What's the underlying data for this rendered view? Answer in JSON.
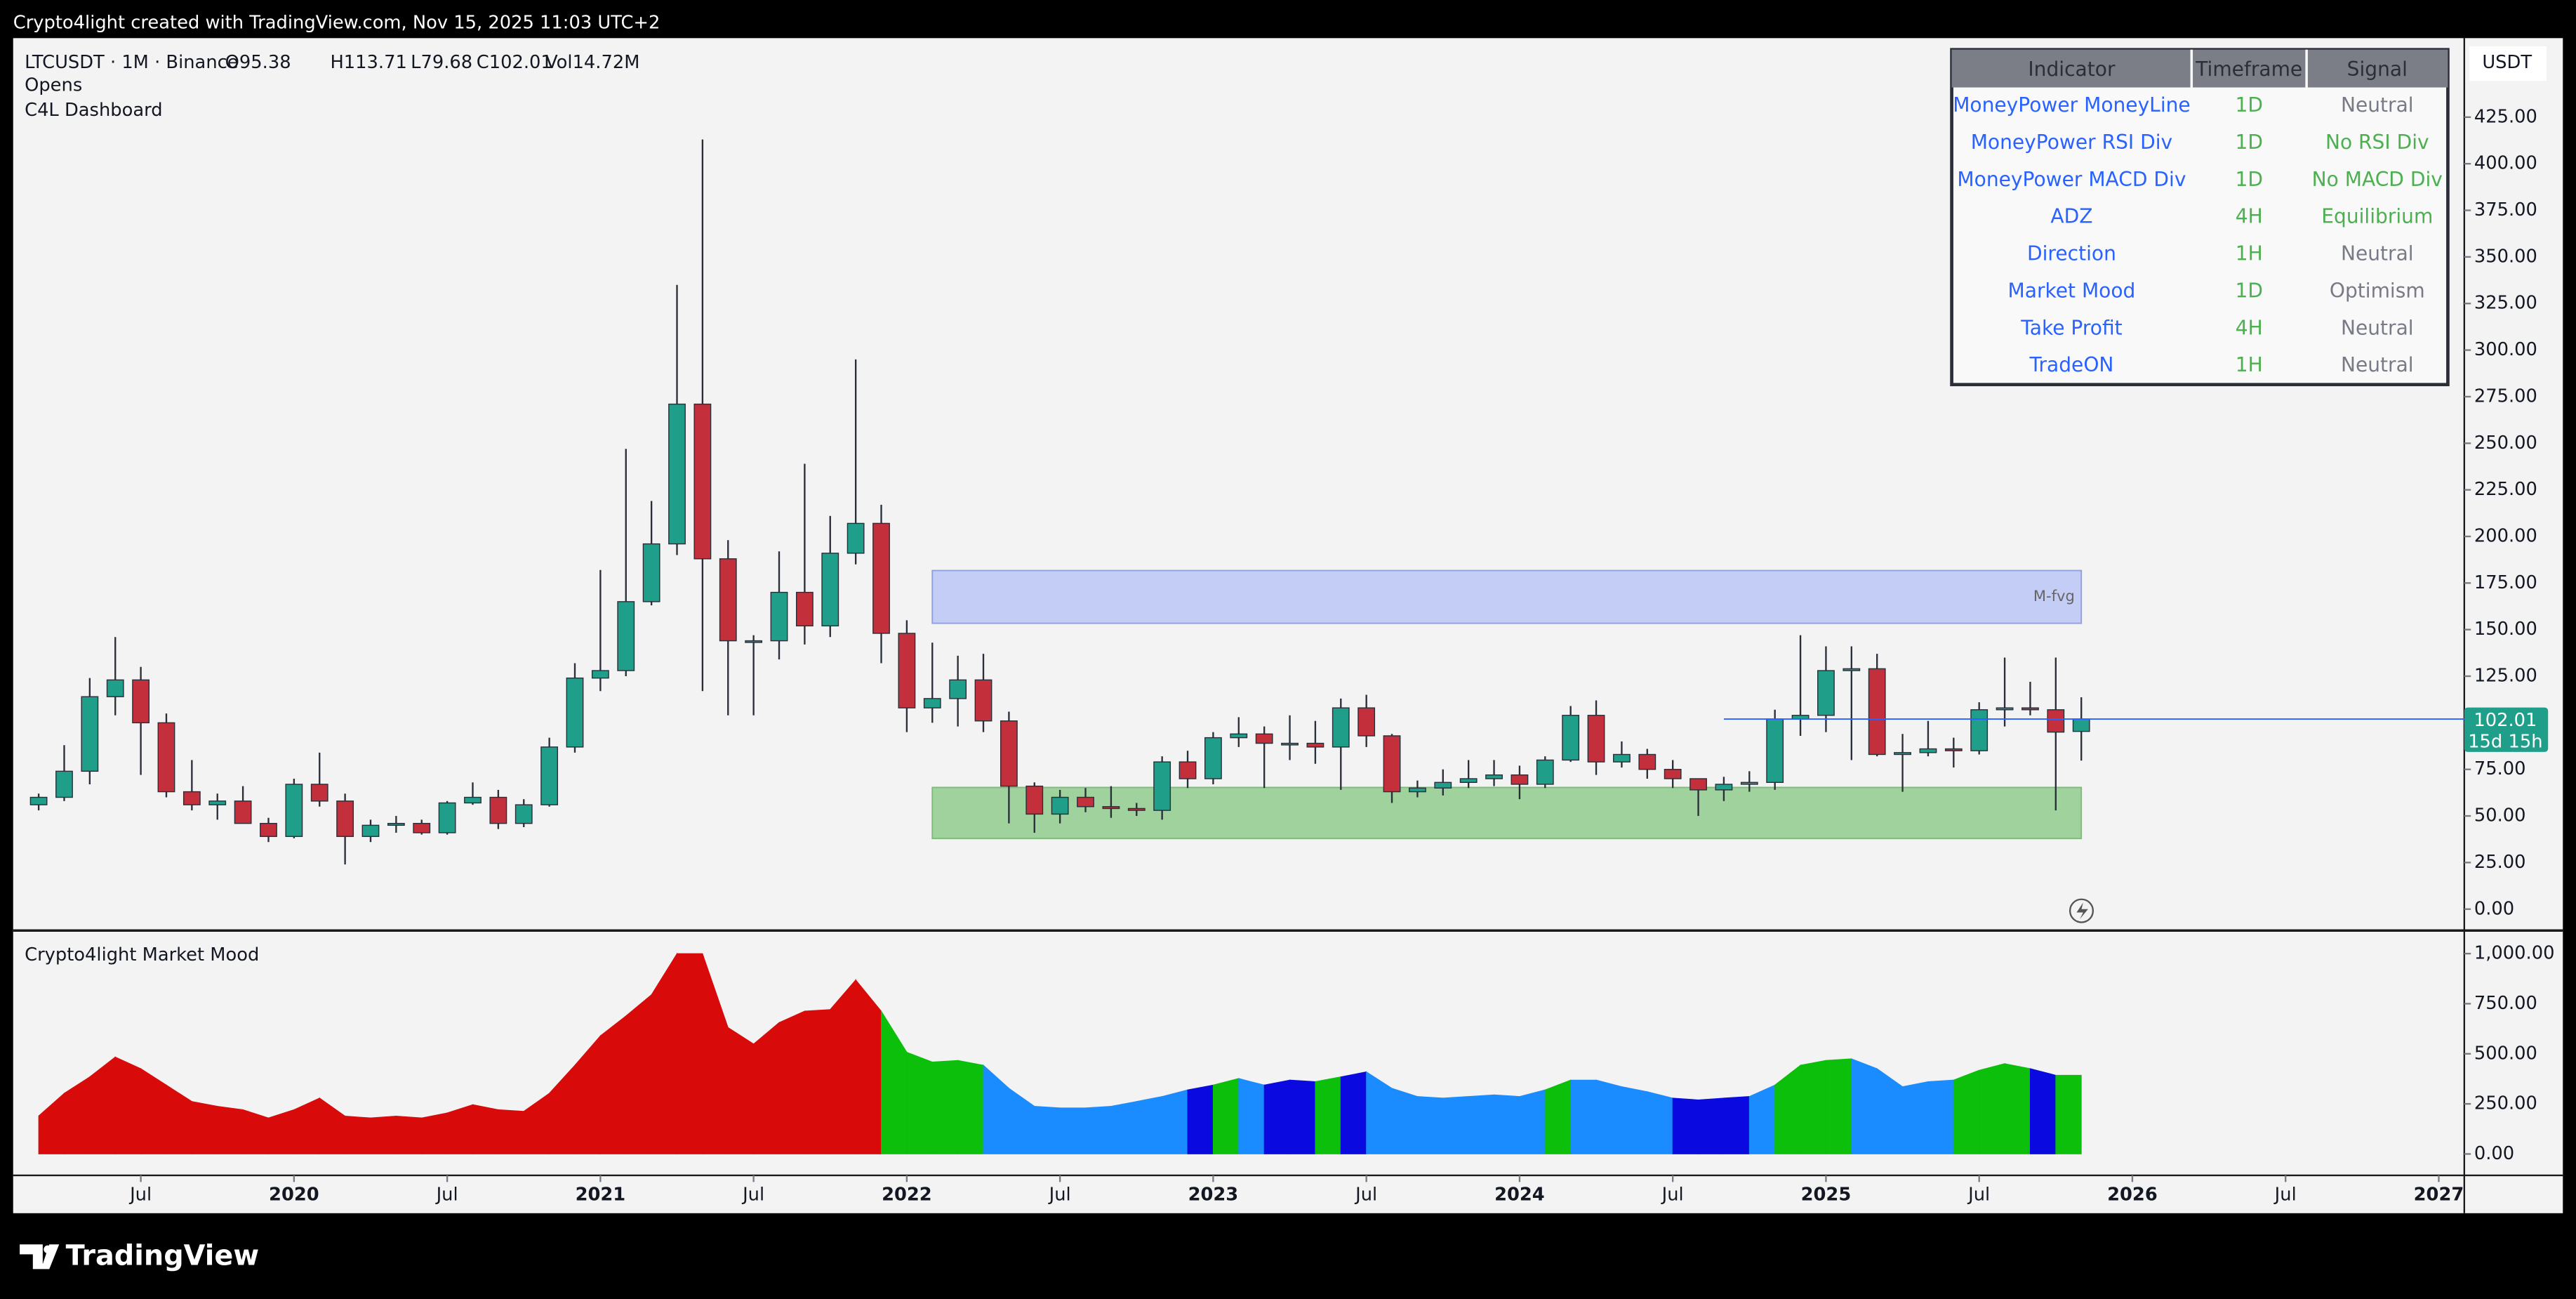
{
  "header": {
    "title": "Crypto4light created with TradingView.com, Nov 15, 2025 11:03 UTC+2",
    "symbol": "LTCUSDT · 1M · Binance",
    "ohlcv": [
      "O95.38",
      "H113.71",
      "L79.68",
      "C102.01",
      "Vol14.72M"
    ],
    "indicators": [
      "Opens",
      "C4L Dashboard"
    ]
  },
  "dashboard": {
    "columns": [
      "Indicator",
      "Timeframe",
      "Signal"
    ],
    "rows": [
      [
        "MoneyPower MoneyLine",
        "1D",
        "Neutral"
      ],
      [
        "MoneyPower RSI Div",
        "1D",
        "No RSI Div"
      ],
      [
        "MoneyPower MACD Div",
        "1D",
        "No MACD Div"
      ],
      [
        "ADZ",
        "4H",
        "Equilibrium"
      ],
      [
        "Direction",
        "1H",
        "Neutral"
      ],
      [
        "Market Mood",
        "1D",
        "Optimism"
      ],
      [
        "Take Profit",
        "4H",
        "Neutral"
      ],
      [
        "TradeON",
        "1H",
        "Neutral"
      ]
    ],
    "signal_colors": [
      "#787b86",
      "#4caf50",
      "#4caf50",
      "#4caf50",
      "#787b86",
      "#787b86",
      "#787b86",
      "#787b86"
    ]
  },
  "chart_data": [
    {
      "type": "candlestick",
      "unit": "USDT",
      "x": [
        "2019-03",
        "2019-04",
        "2019-05",
        "2019-06",
        "2019-07",
        "2019-08",
        "2019-09",
        "2019-10",
        "2019-11",
        "2019-12",
        "2020-01",
        "2020-02",
        "2020-03",
        "2020-04",
        "2020-05",
        "2020-06",
        "2020-07",
        "2020-08",
        "2020-09",
        "2020-10",
        "2020-11",
        "2020-12",
        "2021-01",
        "2021-02",
        "2021-03",
        "2021-04",
        "2021-05",
        "2021-06",
        "2021-07",
        "2021-08",
        "2021-09",
        "2021-10",
        "2021-11",
        "2021-12",
        "2022-01",
        "2022-02",
        "2022-03",
        "2022-04",
        "2022-05",
        "2022-06",
        "2022-07",
        "2022-08",
        "2022-09",
        "2022-10",
        "2022-11",
        "2022-12",
        "2023-01",
        "2023-02",
        "2023-03",
        "2023-04",
        "2023-05",
        "2023-06",
        "2023-07",
        "2023-08",
        "2023-09",
        "2023-10",
        "2023-11",
        "2023-12",
        "2024-01",
        "2024-02",
        "2024-03",
        "2024-04",
        "2024-05",
        "2024-06",
        "2024-07",
        "2024-08",
        "2024-09",
        "2024-10",
        "2024-11",
        "2024-12",
        "2025-01",
        "2025-02",
        "2025-03",
        "2025-04",
        "2025-05",
        "2025-06",
        "2025-07",
        "2025-08",
        "2025-09",
        "2025-10",
        "2025-11"
      ],
      "open": [
        56,
        60,
        74,
        114,
        123,
        100,
        63,
        56,
        58,
        46,
        39,
        67,
        58,
        39,
        45,
        46,
        41,
        57,
        60,
        46,
        56,
        87,
        124,
        128,
        165,
        196,
        271,
        188,
        144,
        144,
        170,
        152,
        191,
        207,
        148,
        108,
        113,
        123,
        101,
        66,
        51,
        60,
        55,
        54,
        53,
        79,
        70,
        92,
        94,
        89,
        89,
        87,
        108,
        93,
        63,
        65,
        68,
        70,
        72,
        67,
        80,
        104,
        79,
        83,
        75,
        70,
        64,
        67,
        68,
        102,
        104,
        128,
        129,
        83,
        84,
        86,
        85,
        107,
        108,
        107,
        95.38
      ],
      "high": [
        62,
        88,
        124,
        146,
        130,
        105,
        80,
        62,
        66,
        49,
        70,
        84,
        62,
        48,
        50,
        48,
        58,
        68,
        64,
        59,
        92,
        132,
        182,
        247,
        219,
        335,
        413,
        198,
        147,
        192,
        239,
        211,
        295,
        217,
        155,
        143,
        136,
        137,
        106,
        68,
        64,
        65,
        66,
        57,
        82,
        85,
        95,
        103,
        98,
        104,
        101,
        113,
        115,
        94,
        69,
        75,
        80,
        80,
        77,
        82,
        109,
        112,
        90,
        86,
        80,
        70,
        71,
        74,
        107,
        147,
        141,
        141,
        137,
        94,
        101,
        92,
        111,
        135,
        122,
        135,
        113.71
      ],
      "low": [
        53,
        58,
        67,
        104,
        72,
        60,
        53,
        48,
        46,
        36,
        38,
        55,
        24,
        36,
        41,
        40,
        40,
        56,
        43,
        44,
        55,
        84,
        117,
        125,
        163,
        190,
        117,
        104,
        104,
        134,
        142,
        146,
        185,
        132,
        95,
        100,
        98,
        95,
        46,
        41,
        46,
        52,
        49,
        50,
        48,
        65,
        67,
        87,
        65,
        80,
        78,
        64,
        87,
        57,
        60,
        61,
        65,
        66,
        59,
        65,
        79,
        72,
        76,
        70,
        65,
        50,
        58,
        63,
        64,
        93,
        95,
        80,
        82,
        63,
        82,
        76,
        83,
        98,
        104,
        53,
        79.68
      ],
      "close": [
        60,
        74,
        114,
        123,
        100,
        63,
        56,
        58,
        46,
        39,
        67,
        58,
        39,
        45,
        46,
        41,
        57,
        60,
        46,
        56,
        87,
        124,
        128,
        165,
        196,
        271,
        188,
        144,
        144,
        170,
        152,
        191,
        207,
        148,
        108,
        113,
        123,
        101,
        66,
        51,
        60,
        55,
        54,
        53,
        79,
        70,
        92,
        94,
        89,
        89,
        87,
        108,
        93,
        63,
        65,
        68,
        70,
        72,
        67,
        80,
        104,
        79,
        83,
        75,
        70,
        64,
        67,
        68,
        102,
        104,
        128,
        129,
        83,
        84,
        86,
        85,
        107,
        108,
        107,
        95,
        102.01
      ],
      "up_color": "#1f9e89",
      "down_color": "#c3303c",
      "last_price_color": "#2962ff",
      "countdown": "15d 15h",
      "xlim": [
        "2019-02",
        "2027-02"
      ],
      "xticks": [
        {
          "value": "2019-07",
          "label": "Jul"
        },
        {
          "value": "2020-01",
          "label": "2020"
        },
        {
          "value": "2020-07",
          "label": "Jul"
        },
        {
          "value": "2021-01",
          "label": "2021"
        },
        {
          "value": "2021-07",
          "label": "Jul"
        },
        {
          "value": "2022-01",
          "label": "2022"
        },
        {
          "value": "2022-07",
          "label": "Jul"
        },
        {
          "value": "2023-01",
          "label": "2023"
        },
        {
          "value": "2023-07",
          "label": "Jul"
        },
        {
          "value": "2024-01",
          "label": "2024"
        },
        {
          "value": "2024-07",
          "label": "Jul"
        },
        {
          "value": "2025-01",
          "label": "2025"
        },
        {
          "value": "2025-07",
          "label": "Jul"
        },
        {
          "value": "2026-01",
          "label": "2026"
        },
        {
          "value": "2026-07",
          "label": "Jul"
        },
        {
          "value": "2027-01",
          "label": "2027"
        }
      ],
      "ylim": [
        -10.6,
        467.4
      ],
      "yticks": [
        {
          "value": 0,
          "label": "0.00"
        },
        {
          "value": 25,
          "label": "25.00"
        },
        {
          "value": 50,
          "label": "50.00"
        },
        {
          "value": 75,
          "label": "75.00"
        },
        {
          "value": 100,
          "label": "100.00"
        },
        {
          "value": 125,
          "label": "125.00"
        },
        {
          "value": 150,
          "label": "150.00"
        },
        {
          "value": 175,
          "label": "175.00"
        },
        {
          "value": 200,
          "label": "200.00"
        },
        {
          "value": 225,
          "label": "225.00"
        },
        {
          "value": 250,
          "label": "250.00"
        },
        {
          "value": 275,
          "label": "275.00"
        },
        {
          "value": 300,
          "label": "300.00"
        },
        {
          "value": 325,
          "label": "325.00"
        },
        {
          "value": 350,
          "label": "350.00"
        },
        {
          "value": 375,
          "label": "375.00"
        },
        {
          "value": 400,
          "label": "400.00"
        },
        {
          "value": 425,
          "label": "425.00"
        }
      ],
      "zones": [
        {
          "label": "M-fvg",
          "x": [
            "2022-02",
            "2025-11"
          ],
          "y": [
            153.4,
            181.7
          ],
          "color": "#c3cdf6",
          "border": "#8e9fe2"
        },
        {
          "x": [
            "2022-02",
            "2025-11"
          ],
          "y": [
            37.9,
            65.3
          ],
          "color": "#9fd29c",
          "border": "#7dbb79"
        }
      ]
    },
    {
      "type": "area",
      "title": "Crypto4light Market Mood",
      "x": [
        "2019-03",
        "2019-04",
        "2019-05",
        "2019-06",
        "2019-07",
        "2019-08",
        "2019-09",
        "2019-10",
        "2019-11",
        "2019-12",
        "2020-01",
        "2020-02",
        "2020-03",
        "2020-04",
        "2020-05",
        "2020-06",
        "2020-07",
        "2020-08",
        "2020-09",
        "2020-10",
        "2020-11",
        "2020-12",
        "2021-01",
        "2021-02",
        "2021-03",
        "2021-04",
        "2021-05",
        "2021-06",
        "2021-07",
        "2021-08",
        "2021-09",
        "2021-10",
        "2021-11",
        "2021-12",
        "2022-01",
        "2022-02",
        "2022-03",
        "2022-04",
        "2022-05",
        "2022-06",
        "2022-07",
        "2022-08",
        "2022-09",
        "2022-10",
        "2022-11",
        "2022-12",
        "2023-01",
        "2023-02",
        "2023-03",
        "2023-04",
        "2023-05",
        "2023-06",
        "2023-07",
        "2023-08",
        "2023-09",
        "2023-10",
        "2023-11",
        "2023-12",
        "2024-01",
        "2024-02",
        "2024-03",
        "2024-04",
        "2024-05",
        "2024-06",
        "2024-07",
        "2024-08",
        "2024-09",
        "2024-10",
        "2024-11",
        "2024-12",
        "2025-01",
        "2025-02",
        "2025-03",
        "2025-04",
        "2025-05",
        "2025-06",
        "2025-07",
        "2025-08",
        "2025-09",
        "2025-10",
        "2025-11"
      ],
      "values": [
        190,
        303,
        385,
        484,
        426,
        344,
        262,
        238,
        221,
        180,
        221,
        279,
        189,
        180,
        189,
        180,
        205,
        246,
        221,
        213,
        303,
        443,
        590,
        689,
        795,
        1000,
        1000,
        631,
        549,
        656,
        713,
        721,
        869,
        713,
        508,
        459,
        467,
        443,
        328,
        238,
        230,
        230,
        238,
        262,
        287,
        320,
        344,
        377,
        344,
        369,
        361,
        385,
        410,
        328,
        287,
        279,
        287,
        295,
        287,
        320,
        369,
        369,
        336,
        311,
        279,
        270,
        279,
        287,
        344,
        443,
        467,
        475,
        426,
        336,
        361,
        369,
        418,
        451,
        426,
        393,
        393
      ],
      "colors": [
        "#d90a0a",
        "#d90a0a",
        "#d90a0a",
        "#d90a0a",
        "#d90a0a",
        "#d90a0a",
        "#d90a0a",
        "#d90a0a",
        "#d90a0a",
        "#d90a0a",
        "#d90a0a",
        "#d90a0a",
        "#d90a0a",
        "#d90a0a",
        "#d90a0a",
        "#d90a0a",
        "#d90a0a",
        "#d90a0a",
        "#d90a0a",
        "#d90a0a",
        "#d90a0a",
        "#d90a0a",
        "#d90a0a",
        "#d90a0a",
        "#d90a0a",
        "#d90a0a",
        "#d90a0a",
        "#d90a0a",
        "#d90a0a",
        "#d90a0a",
        "#d90a0a",
        "#d90a0a",
        "#d90a0a",
        "#0bbf0b",
        "#0bbf0b",
        "#0bbf0b",
        "#0bbf0b",
        "#1a8cff",
        "#1a8cff",
        "#1a8cff",
        "#1a8cff",
        "#1a8cff",
        "#1a8cff",
        "#1a8cff",
        "#1a8cff",
        "#0a0ae0",
        "#0bbf0b",
        "#1a8cff",
        "#0a0ae0",
        "#0a0ae0",
        "#0bbf0b",
        "#0a0ae0",
        "#1a8cff",
        "#1a8cff",
        "#1a8cff",
        "#1a8cff",
        "#1a8cff",
        "#1a8cff",
        "#1a8cff",
        "#0bbf0b",
        "#1a8cff",
        "#1a8cff",
        "#1a8cff",
        "#1a8cff",
        "#0a0ae0",
        "#0a0ae0",
        "#0a0ae0",
        "#1a8cff",
        "#0bbf0b",
        "#0bbf0b",
        "#0bbf0b",
        "#1a8cff",
        "#1a8cff",
        "#1a8cff",
        "#1a8cff",
        "#0bbf0b",
        "#0bbf0b",
        "#0bbf0b",
        "#0a0ae0",
        "#0bbf0b",
        "#0bbf0b"
      ],
      "xlim": [
        "2019-02",
        "2027-02"
      ],
      "ylim": [
        -107,
        1107
      ],
      "yticks": [
        {
          "value": 0,
          "label": "0.00"
        },
        {
          "value": 250,
          "label": "250.00"
        },
        {
          "value": 500,
          "label": "500.00"
        },
        {
          "value": 750,
          "label": "750.00"
        },
        {
          "value": 1000,
          "label": "1,000.00"
        }
      ]
    }
  ],
  "footer": {
    "logo": "TradingView"
  }
}
